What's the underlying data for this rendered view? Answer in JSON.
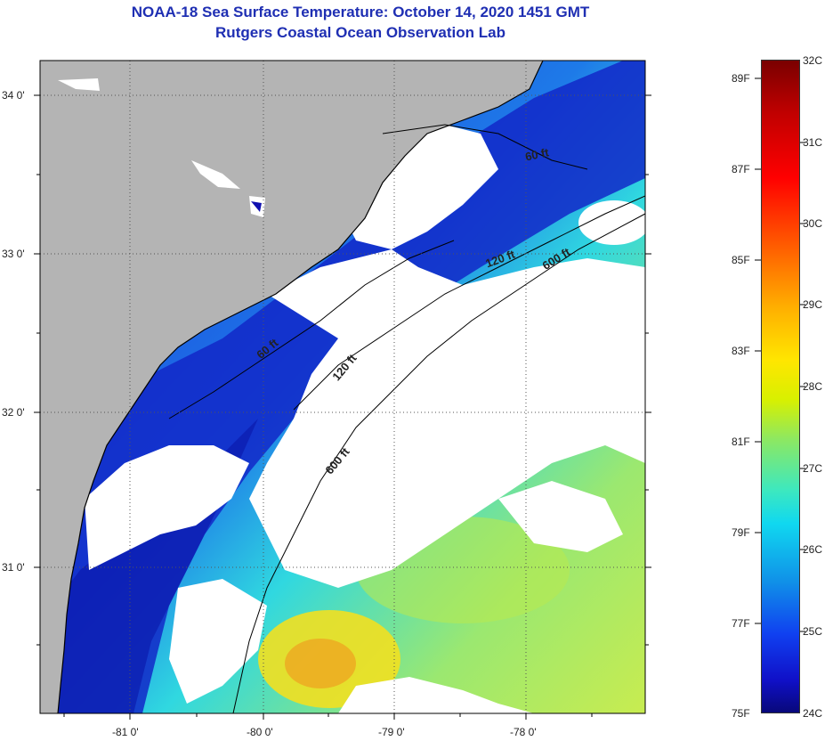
{
  "header": {
    "title": "NOAA-18 Sea Surface Temperature:  October 14, 2020 1451 GMT",
    "subtitle": "Rutgers Coastal Ocean Observation Lab"
  },
  "map": {
    "lat_labels": [
      "34 0'",
      "33 0'",
      "32 0'",
      "31 0'"
    ],
    "lon_labels": [
      "-81 0'",
      "-80 0'",
      "-79 0'",
      "-78 0'"
    ],
    "isobath_labels": [
      "60 ft",
      "120 ft",
      "600 ft",
      "60 ft",
      "120 ft",
      "600 ft"
    ],
    "colors": {
      "land": "#b4b4b4",
      "cloud": "#ffffff",
      "frame": "#000000"
    }
  },
  "colorbar": {
    "fahrenheit_labels": [
      "89F",
      "87F",
      "85F",
      "83F",
      "81F",
      "79F",
      "77F",
      "75F"
    ],
    "celsius_labels": [
      "32C",
      "31C",
      "30C",
      "29C",
      "28C",
      "27C",
      "26C",
      "25C",
      "24C"
    ]
  }
}
